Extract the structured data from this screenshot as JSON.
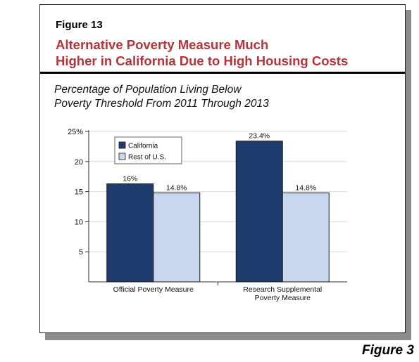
{
  "figure_label": "Figure 13",
  "title_line1": "Alternative Poverty Measure Much",
  "title_line2": "Higher in California Due to High Housing Costs",
  "subtitle_line1": "Percentage of Population Living Below",
  "subtitle_line2": "Poverty Threshold From 2011 Through 2013",
  "outside_label": "Figure 3",
  "colors": {
    "title": "#b5333a",
    "california": "#1f3c6e",
    "rest_of_us": "#c6d7ee"
  },
  "chart_data": {
    "type": "bar",
    "categories": [
      "Official Poverty Measure",
      "Research Supplemental Poverty Measure"
    ],
    "category_lines": [
      [
        "Official Poverty Measure"
      ],
      [
        "Research Supplemental",
        "Poverty Measure"
      ]
    ],
    "series": [
      {
        "name": "California",
        "values": [
          16.3,
          23.4
        ],
        "labels": [
          "16%",
          "23.4%"
        ]
      },
      {
        "name": "Rest of U.S.",
        "values": [
          14.8,
          14.8
        ],
        "labels": [
          "14.8%",
          "14.8%"
        ]
      }
    ],
    "ylim": [
      0,
      25
    ],
    "yticks": [
      5,
      10,
      15,
      20,
      25
    ],
    "ytick_labels": [
      "5",
      "10",
      "15",
      "20",
      "25%"
    ],
    "grid": true,
    "legend": "top-left"
  }
}
